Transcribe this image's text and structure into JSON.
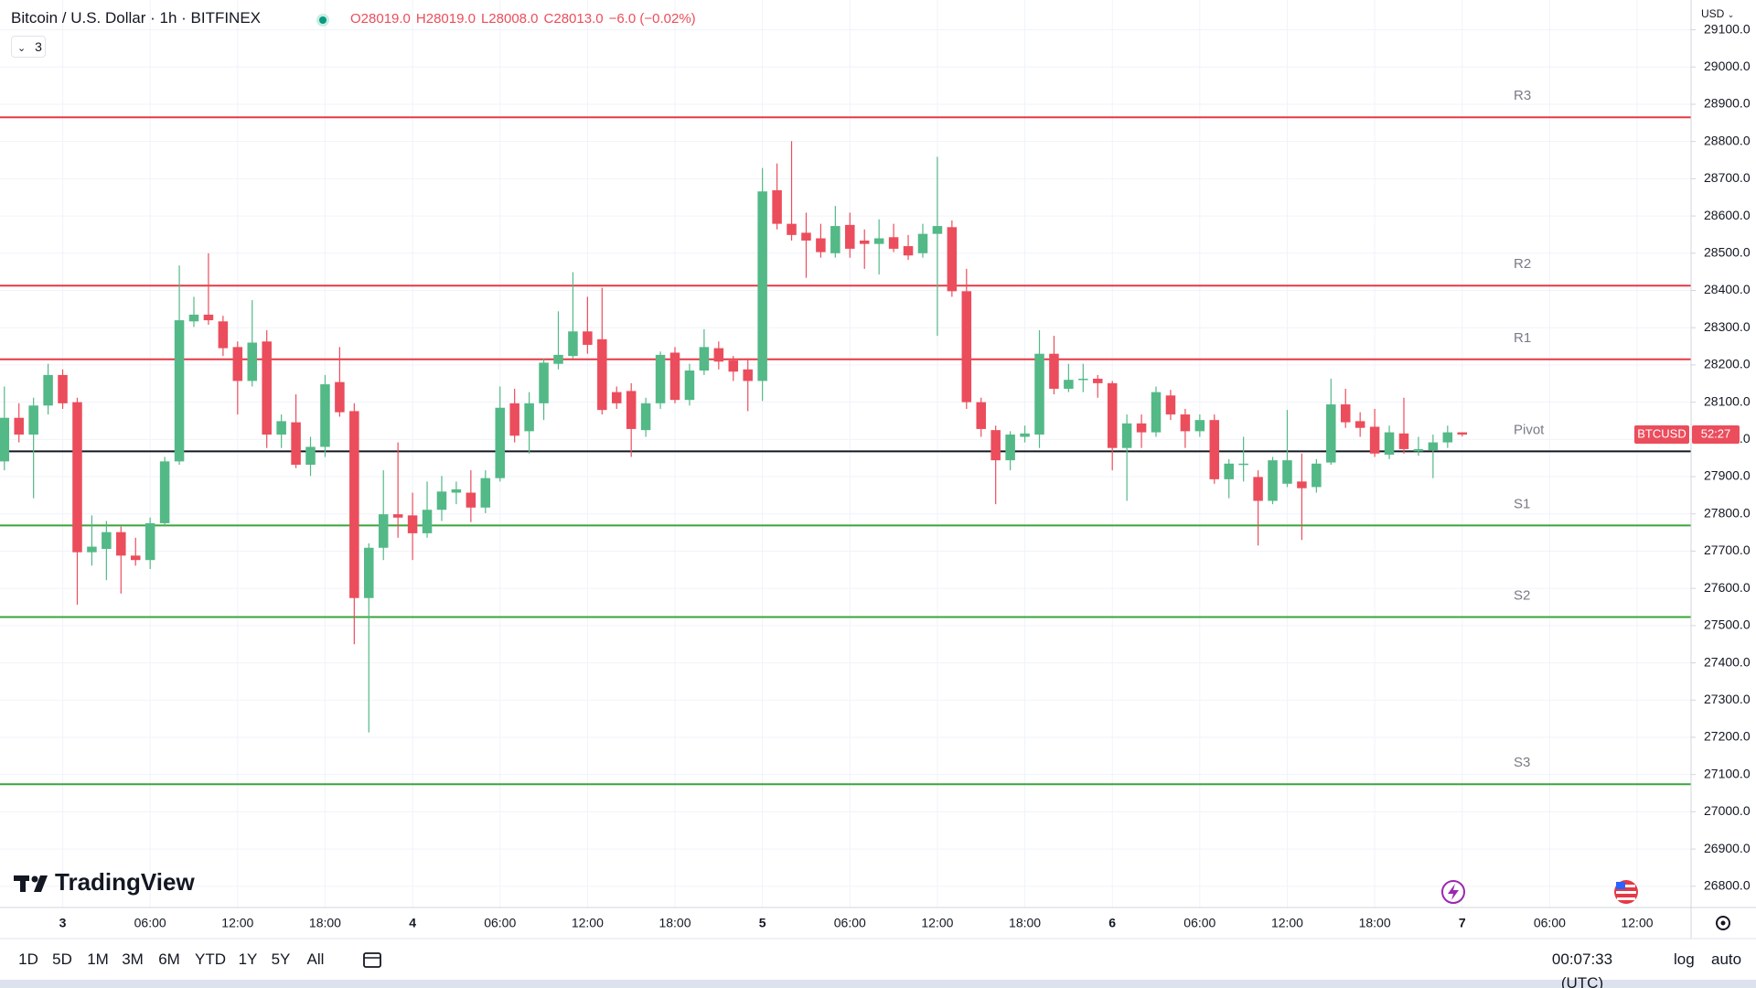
{
  "chart_data": {
    "type": "candlestick",
    "title": "Bitcoin / U.S. Dollar · 1h · BITFINEX",
    "ohlc_legend": [
      "O28019.0",
      "H28019.0",
      "L28008.0",
      "C28013.0",
      "−6.0 (−0.02%)"
    ],
    "indicator_count": "3",
    "currency": "USD",
    "symbol_tag": "BTCUSD",
    "countdown": "52:27",
    "up_color": "#53b987",
    "down_color": "#eb4d5c",
    "grid": true,
    "categories": [
      null,
      null,
      null,
      null,
      "3",
      null,
      null,
      null,
      null,
      null,
      "06:00",
      null,
      null,
      null,
      null,
      null,
      "12:00",
      null,
      null,
      null,
      null,
      null,
      "18:00",
      null,
      null,
      null,
      null,
      null,
      "4",
      null,
      null,
      null,
      null,
      null,
      "06:00",
      null,
      null,
      null,
      null,
      null,
      "12:00",
      null,
      null,
      null,
      null,
      null,
      "18:00",
      null,
      null,
      null,
      null,
      null,
      "5",
      null,
      null,
      null,
      null,
      null,
      "06:00",
      null,
      null,
      null,
      null,
      null,
      "12:00",
      null,
      null,
      null,
      null,
      null,
      "18:00",
      null,
      null,
      null,
      null,
      null,
      "6",
      null,
      null,
      null,
      null,
      null,
      "06:00",
      null,
      null,
      null,
      null,
      null,
      "12:00",
      null,
      null,
      null,
      null,
      null,
      "18:00",
      null,
      null,
      null,
      null,
      null,
      "7",
      null,
      null,
      null,
      null,
      null,
      "06:00",
      null,
      null,
      null,
      null,
      null,
      "12:00",
      null,
      null,
      null
    ],
    "open": [
      27941,
      28058,
      28013,
      28091,
      28173,
      28100,
      27697,
      27706,
      27751,
      27688,
      27676,
      27775,
      27941,
      28317,
      28335,
      28317,
      28248,
      28157,
      28263,
      28013,
      28046,
      27932,
      27980,
      28154,
      28076,
      27574,
      27709,
      27799,
      27796,
      27748,
      27811,
      27857,
      27857,
      27817,
      27896,
      28097,
      28022,
      28097,
      28203,
      28224,
      28290,
      28269,
      28127,
      28130,
      28025,
      28097,
      28233,
      28106,
      28185,
      28245,
      28212,
      28188,
      28157,
      28669,
      28579,
      28555,
      28540,
      28500,
      28576,
      28534,
      28525,
      28543,
      28519,
      28500,
      28552,
      28570,
      28398,
      28100,
      28025,
      27944,
      28007,
      28013,
      28230,
      28136,
      28160,
      28163,
      28151,
      27977,
      28043,
      28019,
      28118,
      28067,
      28022,
      28052,
      27893,
      27932,
      27899,
      27835,
      27881,
      27887,
      27872,
      27938,
      28094,
      28049,
      28034,
      27959,
      28016,
      27968,
      27971,
      27992,
      28019,
      null,
      null,
      null,
      null,
      null,
      null,
      null,
      null,
      null,
      null,
      null,
      null,
      null,
      null,
      null
    ],
    "high": [
      28142,
      28097,
      28112,
      28203,
      28188,
      28112,
      27796,
      27781,
      27766,
      27736,
      27790,
      27953,
      28467,
      28383,
      28500,
      28332,
      28263,
      28374,
      28293,
      28067,
      28121,
      28007,
      28173,
      28248,
      28097,
      27721,
      27917,
      27992,
      27857,
      27887,
      27902,
      27887,
      27917,
      27917,
      28142,
      28136,
      28127,
      28218,
      28344,
      28449,
      28383,
      28407,
      28142,
      28151,
      28112,
      28236,
      28248,
      28203,
      28296,
      28263,
      28224,
      28218,
      28729,
      28741,
      28801,
      28609,
      28579,
      28627,
      28609,
      28564,
      28591,
      28579,
      28549,
      28579,
      28759,
      28588,
      28458,
      28112,
      28037,
      28022,
      28037,
      28293,
      28278,
      28203,
      28203,
      28173,
      28157,
      28067,
      28067,
      28142,
      28133,
      28082,
      28067,
      28067,
      27947,
      28007,
      27917,
      27953,
      28079,
      27962,
      27947,
      28163,
      28136,
      28073,
      28082,
      28037,
      28112,
      28007,
      28013,
      28037,
      28019,
      null,
      null,
      null,
      null,
      null,
      null,
      null,
      null,
      null,
      null,
      null,
      null,
      null,
      null,
      null
    ],
    "low": [
      27917,
      27992,
      27842,
      28067,
      28082,
      27556,
      27661,
      27622,
      27586,
      27661,
      27652,
      27766,
      27932,
      28302,
      28308,
      28224,
      28067,
      28142,
      27977,
      27977,
      27923,
      27902,
      27953,
      28061,
      27450,
      27213,
      27676,
      27736,
      27676,
      27736,
      27781,
      27826,
      27778,
      27802,
      27887,
      27992,
      27962,
      28052,
      28188,
      28218,
      28230,
      28067,
      28082,
      27953,
      28007,
      28082,
      28097,
      28091,
      28173,
      28188,
      28157,
      28076,
      28103,
      28564,
      28534,
      28434,
      28488,
      28488,
      28488,
      28458,
      28443,
      28503,
      28482,
      28488,
      28278,
      28383,
      28082,
      28007,
      27826,
      27917,
      27992,
      27977,
      28121,
      28127,
      28127,
      28112,
      27917,
      27835,
      27977,
      28007,
      28052,
      27977,
      28007,
      27881,
      27842,
      27887,
      27715,
      27826,
      27872,
      27730,
      27857,
      27932,
      28031,
      28007,
      27953,
      27947,
      27962,
      27956,
      27896,
      27977,
      28008,
      null,
      null,
      null,
      null,
      null,
      null,
      null,
      null,
      null,
      null,
      null,
      null,
      null,
      null,
      null
    ],
    "close": [
      28058,
      28013,
      28091,
      28173,
      28097,
      27697,
      27712,
      27751,
      27688,
      27676,
      27775,
      27941,
      28320,
      28335,
      28320,
      28245,
      28157,
      28260,
      28013,
      28049,
      27932,
      27980,
      28148,
      28073,
      27574,
      27709,
      27799,
      27790,
      27748,
      27811,
      27860,
      27866,
      27817,
      27896,
      28085,
      28010,
      28097,
      28206,
      28227,
      28290,
      28254,
      28079,
      28097,
      28028,
      28097,
      28227,
      28106,
      28185,
      28248,
      28209,
      28182,
      28157,
      28666,
      28579,
      28549,
      28534,
      28503,
      28573,
      28512,
      28525,
      28540,
      28512,
      28494,
      28552,
      28573,
      28398,
      28100,
      28028,
      27944,
      28013,
      28016,
      28230,
      28136,
      28160,
      28163,
      28151,
      27977,
      28043,
      28019,
      28127,
      28067,
      28022,
      28052,
      27893,
      27935,
      27935,
      27835,
      27944,
      27944,
      27869,
      27935,
      28094,
      28046,
      28031,
      27962,
      28019,
      27974,
      27974,
      27992,
      28019,
      28013,
      null,
      null,
      null,
      null,
      null,
      null,
      null,
      null,
      null,
      null,
      null,
      null,
      null,
      null,
      null
    ],
    "levels": [
      {
        "name": "R3",
        "value": 28865,
        "color": "#e53945"
      },
      {
        "name": "R2",
        "value": 28413,
        "color": "#e53945"
      },
      {
        "name": "R1",
        "value": 28215,
        "color": "#e53945"
      },
      {
        "name": "Pivot",
        "value": 27968,
        "color": "#131722"
      },
      {
        "name": "S1",
        "value": 27769,
        "color": "#3aa53a"
      },
      {
        "name": "S2",
        "value": 27523,
        "color": "#3aa53a"
      },
      {
        "name": "S3",
        "value": 27074,
        "color": "#3aa53a"
      }
    ],
    "ylim": [
      26743,
      29180
    ],
    "yticks": [
      {
        "value": 26800,
        "label": "26800.0"
      },
      {
        "value": 26900,
        "label": "26900.0"
      },
      {
        "value": 27000,
        "label": "27000.0"
      },
      {
        "value": 27100,
        "label": "27100.0"
      },
      {
        "value": 27200,
        "label": "27200.0"
      },
      {
        "value": 27300,
        "label": "27300.0"
      },
      {
        "value": 27400,
        "label": "27400.0"
      },
      {
        "value": 27500,
        "label": "27500.0"
      },
      {
        "value": 27600,
        "label": "27600.0"
      },
      {
        "value": 27700,
        "label": "27700.0"
      },
      {
        "value": 27800,
        "label": "27800.0"
      },
      {
        "value": 27900,
        "label": "27900.0"
      },
      {
        "value": 28000,
        "label": "28000.0"
      },
      {
        "value": 28100,
        "label": "28100.0"
      },
      {
        "value": 28200,
        "label": "28200.0"
      },
      {
        "value": 28300,
        "label": "28300.0"
      },
      {
        "value": 28400,
        "label": "28400.0"
      },
      {
        "value": 28500,
        "label": "28500.0"
      },
      {
        "value": 28600,
        "label": "28600.0"
      },
      {
        "value": 28700,
        "label": "28700.0"
      },
      {
        "value": 28800,
        "label": "28800.0"
      },
      {
        "value": 28900,
        "label": "28900.0"
      },
      {
        "value": 29000,
        "label": "29000.0"
      },
      {
        "value": 29100,
        "label": "29100.0"
      }
    ]
  },
  "toolbar": {
    "ranges": [
      "1D",
      "5D",
      "1M",
      "3M",
      "6M",
      "YTD",
      "1Y",
      "5Y",
      "All"
    ],
    "clock": "00:07:33 (UTC)",
    "log": "log",
    "auto": "auto"
  },
  "brand": "TradingView"
}
